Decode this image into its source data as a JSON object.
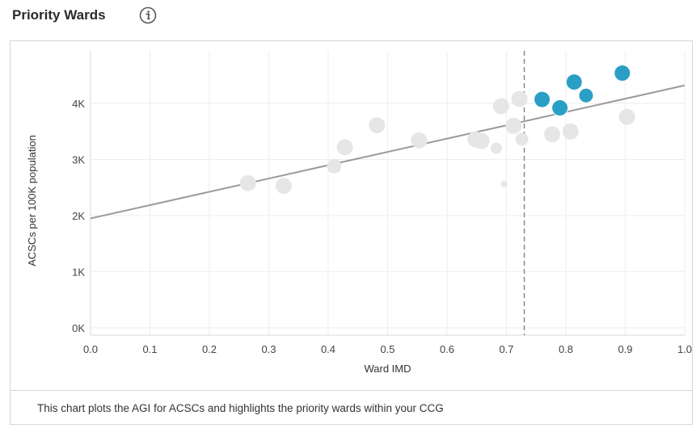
{
  "header": {
    "title": "Priority Wards"
  },
  "footer": {
    "text": "This chart plots the AGI for ACSCs and highlights the priority wards within your CCG"
  },
  "colors": {
    "highlight": "#2a9fc5",
    "faded": "#e6e6e6",
    "trendline": "#9a9a9a",
    "threshold": "#8a8a8a",
    "grid": "#eeeeee"
  },
  "icons": {
    "info": "info-icon"
  },
  "chart_data": {
    "type": "scatter",
    "xlabel": "Ward IMD",
    "ylabel": "ACSCs per 100K population",
    "xlim": [
      0.0,
      1.0
    ],
    "ylim": [
      0,
      4800
    ],
    "x_ticks": [
      0.0,
      0.1,
      0.2,
      0.3,
      0.4,
      0.5,
      0.6,
      0.7,
      0.8,
      0.9,
      1.0
    ],
    "x_tick_labels": [
      "0.0",
      "0.1",
      "0.2",
      "0.3",
      "0.4",
      "0.5",
      "0.6",
      "0.7",
      "0.8",
      "0.9",
      "1.0"
    ],
    "y_ticks": [
      0,
      1000,
      2000,
      3000,
      4000
    ],
    "y_tick_labels": [
      "0K",
      "1K",
      "2K",
      "3K",
      "4K"
    ],
    "grid": true,
    "threshold_x": 0.73,
    "trendline": {
      "intercept": 1950,
      "slope": 2370
    },
    "points": [
      {
        "x": 0.265,
        "y": 2580,
        "size": 10,
        "priority": false
      },
      {
        "x": 0.325,
        "y": 2530,
        "size": 10,
        "priority": false
      },
      {
        "x": 0.41,
        "y": 2880,
        "size": 9,
        "priority": false
      },
      {
        "x": 0.428,
        "y": 3220,
        "size": 10,
        "priority": false
      },
      {
        "x": 0.482,
        "y": 3610,
        "size": 10,
        "priority": false
      },
      {
        "x": 0.553,
        "y": 3340,
        "size": 10,
        "priority": false
      },
      {
        "x": 0.648,
        "y": 3360,
        "size": 10,
        "priority": false
      },
      {
        "x": 0.658,
        "y": 3330,
        "size": 10,
        "priority": false
      },
      {
        "x": 0.683,
        "y": 3200,
        "size": 7,
        "priority": false
      },
      {
        "x": 0.691,
        "y": 3950,
        "size": 10,
        "priority": false
      },
      {
        "x": 0.696,
        "y": 2560,
        "size": 4,
        "priority": false
      },
      {
        "x": 0.712,
        "y": 3600,
        "size": 10,
        "priority": false
      },
      {
        "x": 0.722,
        "y": 4080,
        "size": 10,
        "priority": false
      },
      {
        "x": 0.726,
        "y": 3360,
        "size": 8,
        "priority": false
      },
      {
        "x": 0.777,
        "y": 3450,
        "size": 10,
        "priority": false
      },
      {
        "x": 0.808,
        "y": 3500,
        "size": 10,
        "priority": false
      },
      {
        "x": 0.903,
        "y": 3760,
        "size": 10,
        "priority": false
      },
      {
        "x": 0.76,
        "y": 4070,
        "size": 10,
        "priority": true
      },
      {
        "x": 0.79,
        "y": 3920,
        "size": 10,
        "priority": true
      },
      {
        "x": 0.814,
        "y": 4380,
        "size": 10,
        "priority": true
      },
      {
        "x": 0.834,
        "y": 4140,
        "size": 9,
        "priority": true
      },
      {
        "x": 0.895,
        "y": 4540,
        "size": 10,
        "priority": true
      }
    ]
  }
}
